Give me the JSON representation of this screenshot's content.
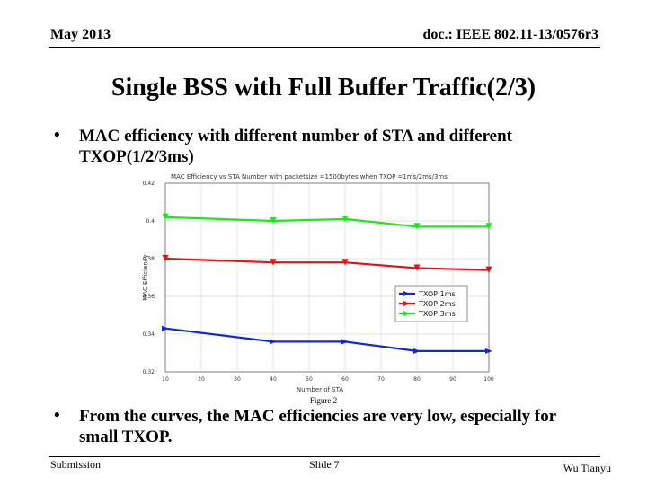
{
  "header": {
    "date": "May 2013",
    "doc_id": "doc.: IEEE 802.11-13/0576r3"
  },
  "title": "Single BSS with Full Buffer Traffic(2/3)",
  "bullets": [
    {
      "marker": "•",
      "lines": [
        "MAC efficiency with different number of STA and different",
        "TXOP(1/2/3ms)"
      ]
    },
    {
      "marker": "•",
      "lines": [
        "From the curves, the MAC efficiencies are very low,  especially for",
        "small TXOP."
      ]
    }
  ],
  "figure_caption": "Figure 2",
  "footer": {
    "left": "Submission",
    "center": "Slide 7",
    "right": "Wu Tianyu"
  },
  "colors": {
    "txop1": "#1428d2",
    "txop2": "#e01414",
    "txop3": "#1ee61e",
    "grid": "#d9d9d9"
  },
  "chart_data": {
    "type": "line",
    "title": "MAC Efficiency vs STA Number with packetsize =1500bytes when TXOP =1ms/2ms/3ms",
    "xlabel": "Number of STA",
    "ylabel": "MAC Efficiency",
    "xlim": [
      10,
      100
    ],
    "ylim": [
      0.32,
      0.42
    ],
    "xticks": [
      10,
      20,
      30,
      40,
      50,
      60,
      70,
      80,
      90,
      100
    ],
    "yticks": [
      0.32,
      0.34,
      0.36,
      0.38,
      0.4,
      0.42
    ],
    "grid": true,
    "legend_position": "right",
    "x": [
      10,
      40,
      60,
      80,
      100
    ],
    "series": [
      {
        "name": "TXOP:1ms",
        "values": [
          0.343,
          0.336,
          0.336,
          0.331,
          0.331
        ]
      },
      {
        "name": "TXOP:2ms",
        "values": [
          0.38,
          0.378,
          0.378,
          0.375,
          0.374
        ]
      },
      {
        "name": "TXOP:3ms",
        "values": [
          0.402,
          0.4,
          0.401,
          0.397,
          0.397
        ]
      }
    ]
  }
}
